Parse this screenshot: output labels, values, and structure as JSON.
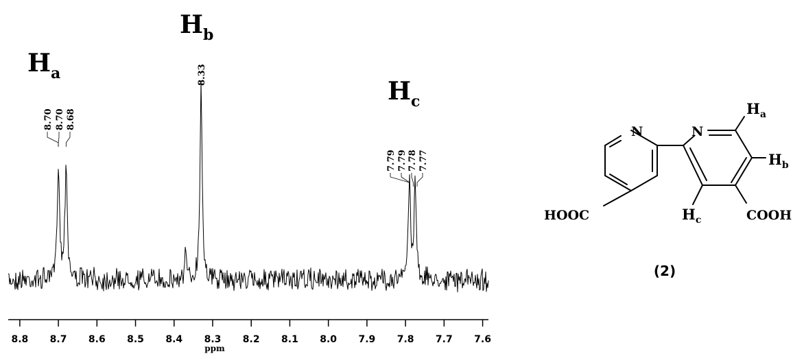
{
  "chart_data": {
    "type": "line",
    "xlabel": "ppm",
    "xlim": [
      8.83,
      7.585
    ],
    "x_reversed": true,
    "x_ticks": [
      "8.8",
      "8.7",
      "8.6",
      "8.5",
      "8.4",
      "8.3",
      "8.2",
      "8.1",
      "8.0",
      "7.9",
      "7.8",
      "7.7",
      "7.6"
    ],
    "peaks": [
      {
        "group": "Ha",
        "shifts": [
          "8.70",
          "8.70",
          "8.68"
        ],
        "lines": [
          8.7,
          8.68
        ],
        "heights": [
          0.6,
          0.6
        ]
      },
      {
        "group": "Hb",
        "shifts": [
          "8.33"
        ],
        "lines": [
          8.33
        ],
        "heights": [
          0.97
        ]
      },
      {
        "group": "Hc",
        "shifts": [
          "7.79",
          "7.79",
          "7.78",
          "7.77"
        ],
        "lines": [
          7.79,
          7.775
        ],
        "heights": [
          0.49,
          0.49
        ]
      }
    ],
    "minor_peaks": [
      {
        "x": 8.37,
        "height": 0.14
      }
    ],
    "group_labels": [
      {
        "main": "H",
        "sub": "a"
      },
      {
        "main": "H",
        "sub": "b"
      },
      {
        "main": "H",
        "sub": "c"
      }
    ]
  },
  "molecule": {
    "atoms": {
      "n_left": "N",
      "n_right": "N",
      "hooc": "HOOC",
      "cooh": "COOH"
    },
    "hydrogens": [
      {
        "main": "H",
        "sub": "a"
      },
      {
        "main": "H",
        "sub": "b"
      },
      {
        "main": "H",
        "sub": "c"
      }
    ],
    "compound_label": "(2)"
  }
}
